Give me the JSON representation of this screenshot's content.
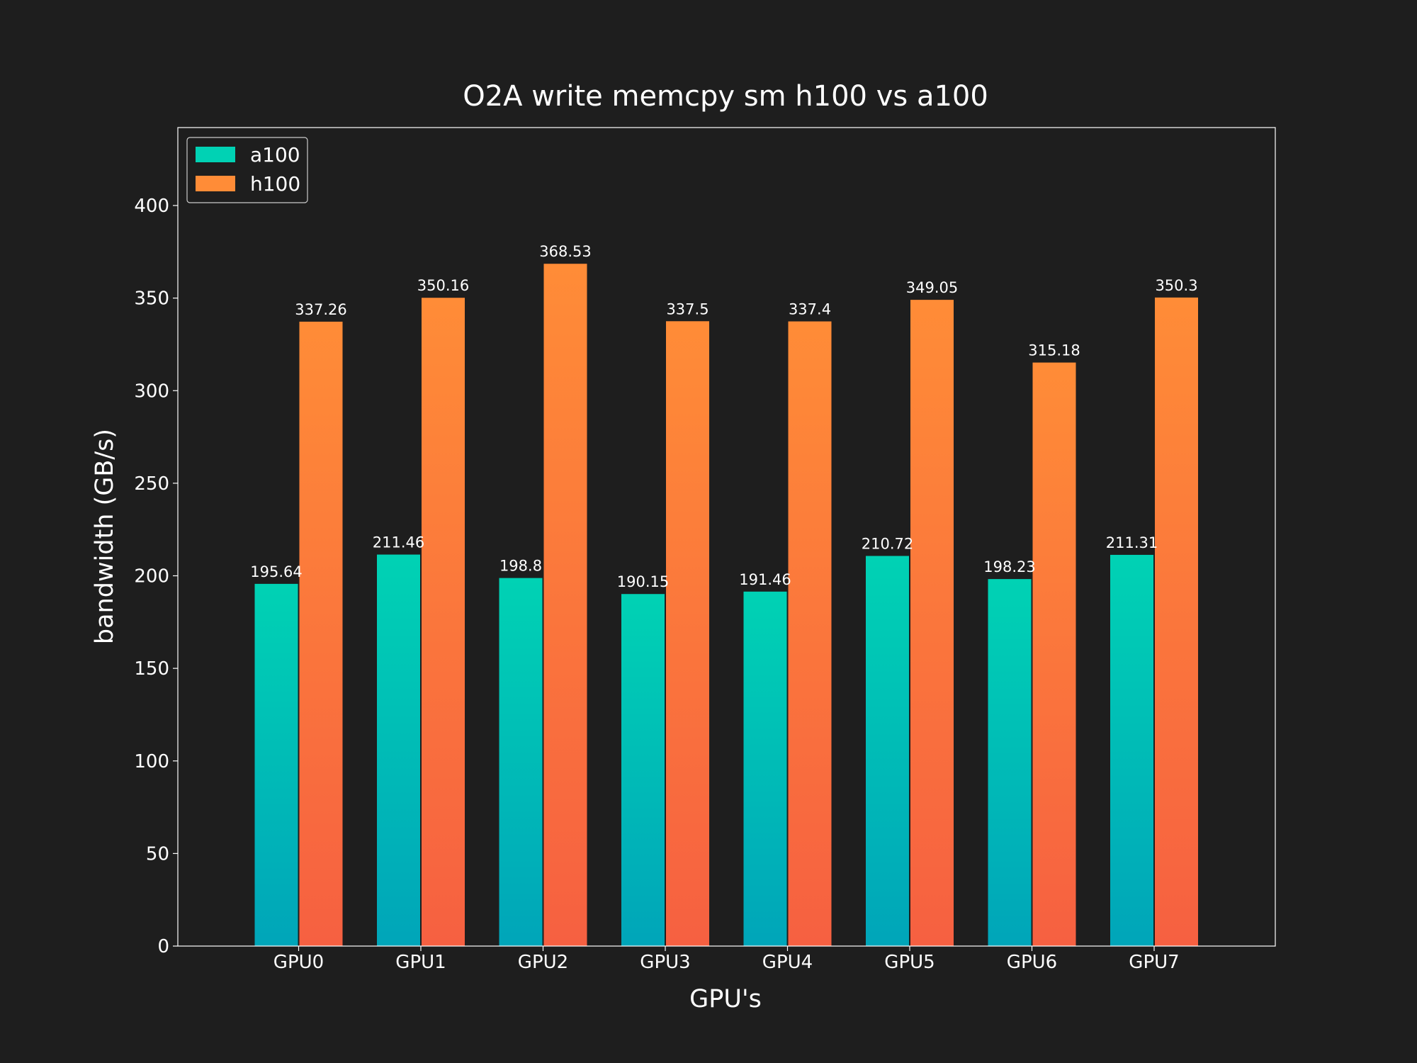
{
  "chart_data": {
    "type": "bar",
    "title": "O2A write memcpy sm h100 vs a100",
    "xlabel": "GPU's",
    "ylabel": "bandwidth (GB/s)",
    "categories": [
      "GPU0",
      "GPU1",
      "GPU2",
      "GPU3",
      "GPU4",
      "GPU5",
      "GPU6",
      "GPU7"
    ],
    "series": [
      {
        "name": "a100",
        "values": [
          195.64,
          211.46,
          198.8,
          190.15,
          191.46,
          210.72,
          198.23,
          211.31
        ],
        "color_top": "#00d2b4",
        "color_bottom": "#00a5b9"
      },
      {
        "name": "h100",
        "values": [
          337.26,
          350.16,
          368.53,
          337.5,
          337.4,
          349.05,
          315.18,
          350.3
        ],
        "color_top": "#ff8c37",
        "color_bottom": "#f66041"
      }
    ],
    "ylim": [
      0,
      420
    ],
    "yticks": [
      0,
      50,
      100,
      150,
      200,
      250,
      300,
      350,
      400
    ],
    "grid": false,
    "legend_position": "top-left",
    "background": "#1e1e1e",
    "text_color": "#ffffff",
    "frame_color": "#ffffff"
  }
}
